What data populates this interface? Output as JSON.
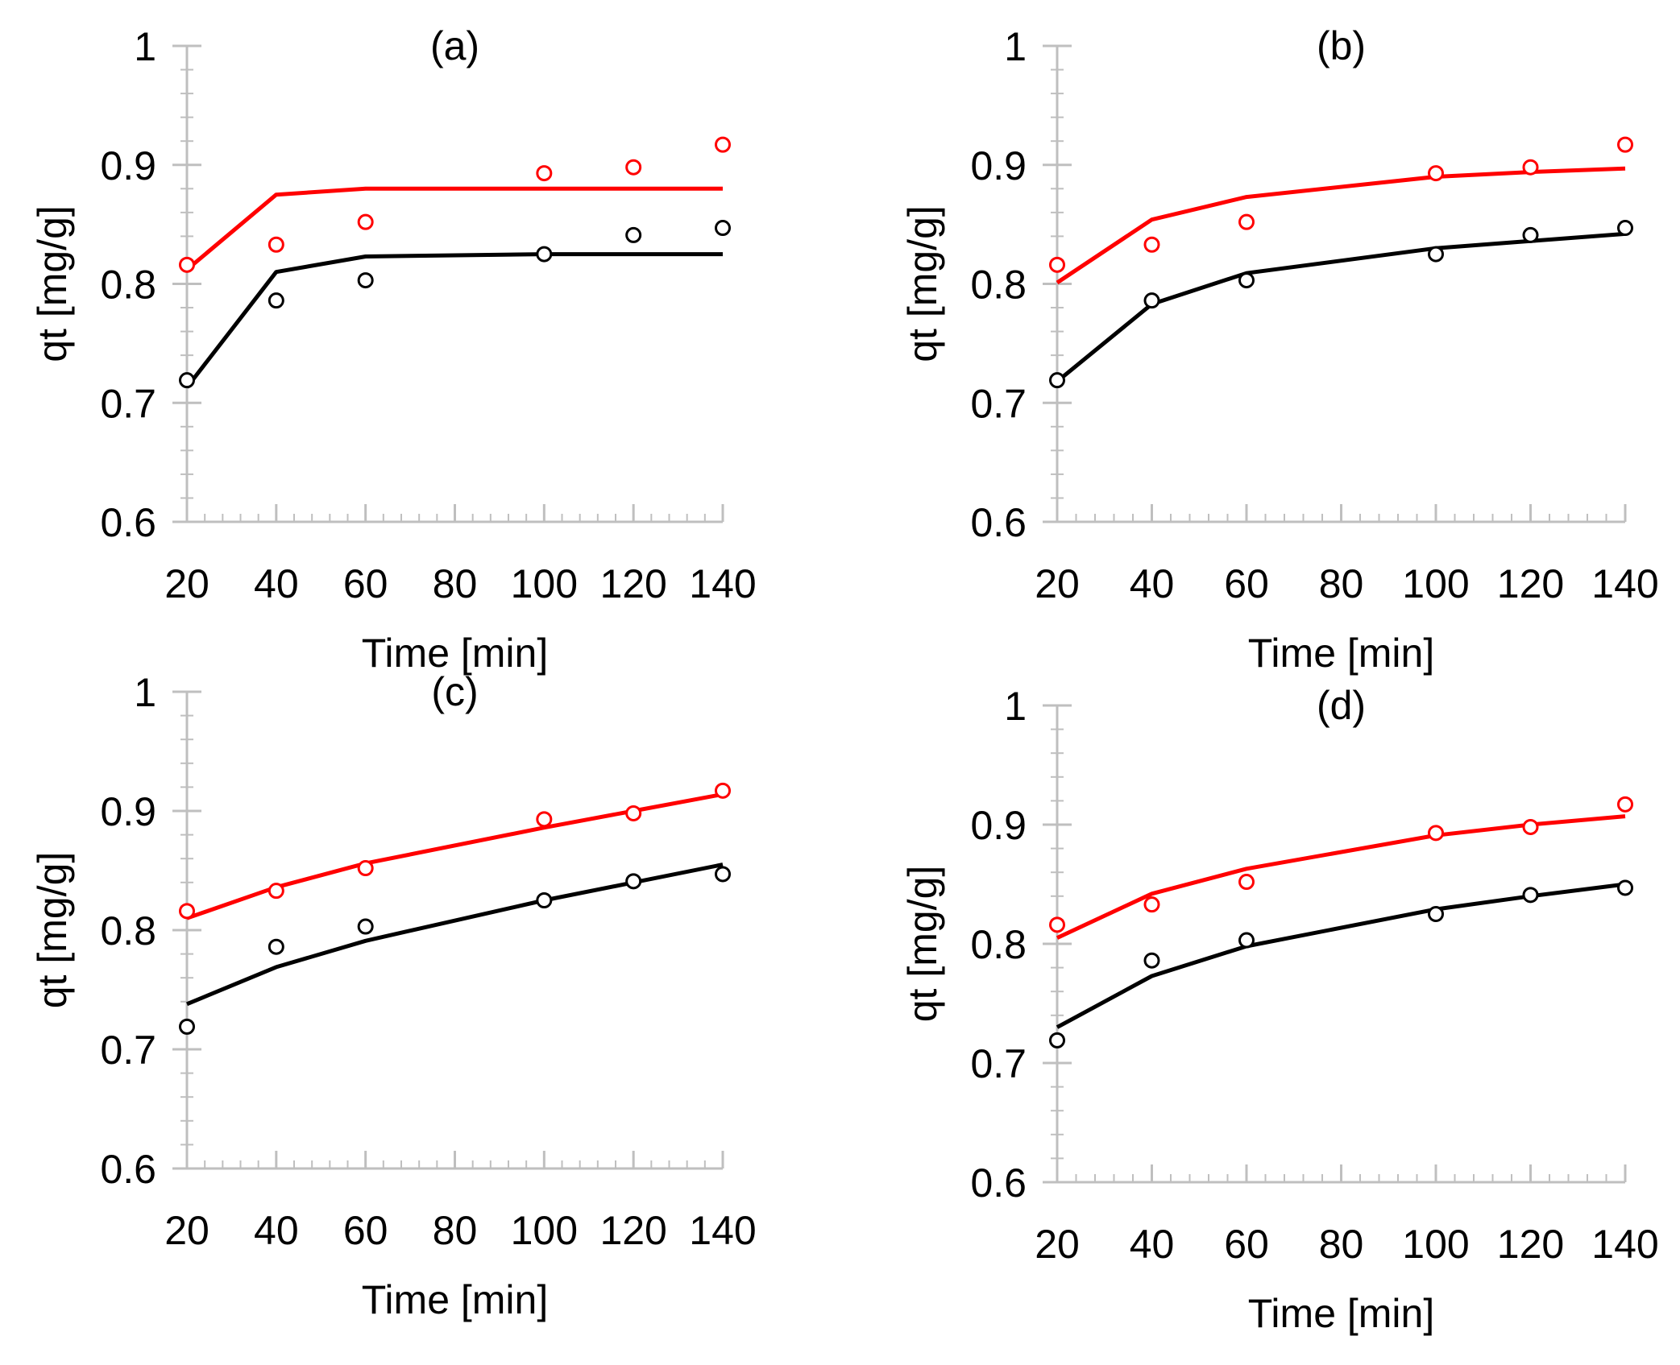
{
  "figure": {
    "colors": {
      "red": "#ff0000",
      "black": "#000000",
      "axis": "#bfbfbf"
    }
  },
  "chart_data": [
    {
      "type": "scatter",
      "title": "(a)",
      "xlabel": "Time  [min]",
      "ylabel": "qt [mg/g]",
      "xlim": [
        20,
        140
      ],
      "ylim": [
        0.6,
        1
      ],
      "xticks": [
        "20",
        "40",
        "60",
        "80",
        "100",
        "120",
        "140"
      ],
      "yticks": [
        "0.6",
        "0.7",
        "0.8",
        "0.9",
        "1"
      ],
      "series": [
        {
          "name": "red-experimental",
          "kind": "markers",
          "color": "#ff0000",
          "x": [
            20,
            40,
            60,
            100,
            120,
            140
          ],
          "y": [
            0.816,
            0.833,
            0.852,
            0.893,
            0.898,
            0.917
          ]
        },
        {
          "name": "black-experimental",
          "kind": "markers",
          "color": "#000000",
          "x": [
            20,
            40,
            60,
            100,
            120,
            140
          ],
          "y": [
            0.719,
            0.786,
            0.803,
            0.825,
            0.841,
            0.847
          ]
        },
        {
          "name": "red-model",
          "kind": "line",
          "color": "#ff0000",
          "x": [
            20,
            40,
            60,
            100,
            120,
            140
          ],
          "y": [
            0.812,
            0.875,
            0.88,
            0.88,
            0.88,
            0.88
          ]
        },
        {
          "name": "black-model",
          "kind": "line",
          "color": "#000000",
          "x": [
            20,
            40,
            60,
            100,
            120,
            140
          ],
          "y": [
            0.713,
            0.81,
            0.823,
            0.825,
            0.825,
            0.825
          ]
        }
      ]
    },
    {
      "type": "scatter",
      "title": "(b)",
      "xlabel": "Time  [min]",
      "ylabel": "qt [mg/g]",
      "xlim": [
        20,
        140
      ],
      "ylim": [
        0.6,
        1
      ],
      "xticks": [
        "20",
        "40",
        "60",
        "80",
        "100",
        "120",
        "140"
      ],
      "yticks": [
        "0.6",
        "0.7",
        "0.8",
        "0.9",
        "1"
      ],
      "series": [
        {
          "name": "red-experimental",
          "kind": "markers",
          "color": "#ff0000",
          "x": [
            20,
            40,
            60,
            100,
            120,
            140
          ],
          "y": [
            0.816,
            0.833,
            0.852,
            0.893,
            0.898,
            0.917
          ]
        },
        {
          "name": "black-experimental",
          "kind": "markers",
          "color": "#000000",
          "x": [
            20,
            40,
            60,
            100,
            120,
            140
          ],
          "y": [
            0.719,
            0.786,
            0.803,
            0.825,
            0.841,
            0.847
          ]
        },
        {
          "name": "red-model",
          "kind": "line",
          "color": "#ff0000",
          "x": [
            20,
            40,
            60,
            100,
            120,
            140
          ],
          "y": [
            0.801,
            0.854,
            0.873,
            0.89,
            0.894,
            0.897
          ]
        },
        {
          "name": "black-model",
          "kind": "line",
          "color": "#000000",
          "x": [
            20,
            40,
            60,
            100,
            120,
            140
          ],
          "y": [
            0.718,
            0.783,
            0.809,
            0.83,
            0.836,
            0.842
          ]
        }
      ]
    },
    {
      "type": "scatter",
      "title": "(c)",
      "xlabel": "Time  [min]",
      "ylabel": "qt [mg/g]",
      "xlim": [
        20,
        140
      ],
      "ylim": [
        0.6,
        1
      ],
      "xticks": [
        "20",
        "40",
        "60",
        "80",
        "100",
        "120",
        "140"
      ],
      "yticks": [
        "0.6",
        "0.7",
        "0.8",
        "0.9",
        "1"
      ],
      "series": [
        {
          "name": "red-experimental",
          "kind": "markers",
          "color": "#ff0000",
          "x": [
            20,
            40,
            60,
            100,
            120,
            140
          ],
          "y": [
            0.816,
            0.833,
            0.852,
            0.893,
            0.898,
            0.917
          ]
        },
        {
          "name": "black-experimental",
          "kind": "markers",
          "color": "#000000",
          "x": [
            20,
            40,
            60,
            100,
            120,
            140
          ],
          "y": [
            0.719,
            0.786,
            0.803,
            0.825,
            0.841,
            0.847
          ]
        },
        {
          "name": "red-model",
          "kind": "line",
          "color": "#ff0000",
          "x": [
            20,
            40,
            60,
            100,
            120,
            140
          ],
          "y": [
            0.81,
            0.836,
            0.856,
            0.886,
            0.9,
            0.914
          ]
        },
        {
          "name": "black-model",
          "kind": "line",
          "color": "#000000",
          "x": [
            20,
            40,
            60,
            100,
            120,
            140
          ],
          "y": [
            0.738,
            0.769,
            0.791,
            0.825,
            0.84,
            0.855
          ]
        }
      ]
    },
    {
      "type": "scatter",
      "title": "(d)",
      "xlabel": "Time  [min]",
      "ylabel": "qt [mg/g]",
      "xlim": [
        20,
        140
      ],
      "ylim": [
        0.6,
        1
      ],
      "xticks": [
        "20",
        "40",
        "60",
        "80",
        "100",
        "120",
        "140"
      ],
      "yticks": [
        "0.6",
        "0.7",
        "0.8",
        "0.9",
        "1"
      ],
      "series": [
        {
          "name": "red-experimental",
          "kind": "markers",
          "color": "#ff0000",
          "x": [
            20,
            40,
            60,
            100,
            120,
            140
          ],
          "y": [
            0.816,
            0.833,
            0.852,
            0.893,
            0.898,
            0.917
          ]
        },
        {
          "name": "black-experimental",
          "kind": "markers",
          "color": "#000000",
          "x": [
            20,
            40,
            60,
            100,
            120,
            140
          ],
          "y": [
            0.719,
            0.786,
            0.803,
            0.825,
            0.841,
            0.847
          ]
        },
        {
          "name": "red-model",
          "kind": "line",
          "color": "#ff0000",
          "x": [
            20,
            40,
            60,
            100,
            120,
            140
          ],
          "y": [
            0.805,
            0.842,
            0.863,
            0.891,
            0.9,
            0.907
          ]
        },
        {
          "name": "black-model",
          "kind": "line",
          "color": "#000000",
          "x": [
            20,
            40,
            60,
            100,
            120,
            140
          ],
          "y": [
            0.73,
            0.773,
            0.798,
            0.829,
            0.84,
            0.85
          ]
        }
      ]
    }
  ]
}
